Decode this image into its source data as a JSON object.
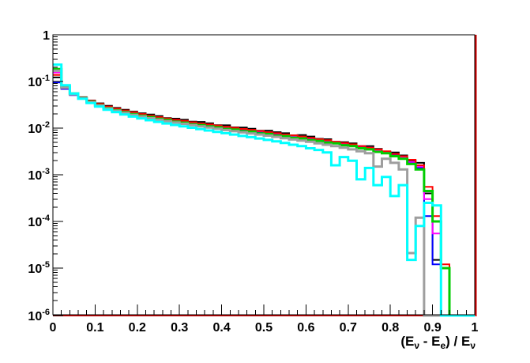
{
  "figure": {
    "background": "#ffffff",
    "axis_color": "#000000"
  },
  "chart_data": {
    "type": "histogram-steps",
    "title": "",
    "xlabel_parts": [
      {
        "text": "(E"
      },
      {
        "sub": "ν"
      },
      {
        "text": " - E"
      },
      {
        "sub": "e"
      },
      {
        "text": ") / E"
      },
      {
        "sub": "ν"
      }
    ],
    "x_min": 0,
    "x_max": 1,
    "bin_count": 50,
    "bin_width": 0.02,
    "y_scale": "log",
    "y_min": 1e-06,
    "y_max": 1,
    "grid": false,
    "legend": "none",
    "x_tick_labels": [
      "0",
      "0.1",
      "0.2",
      "0.3",
      "0.4",
      "0.5",
      "0.6",
      "0.7",
      "0.8",
      "0.9",
      "1"
    ],
    "x_major_step": 0.1,
    "x_minor_step": 0.02,
    "y_tick_exponents": [
      0,
      -1,
      -2,
      -3,
      -4,
      -5,
      -6
    ],
    "floor_line": {
      "name": "dark-red-floor-histogram",
      "color": "#cc0000",
      "width": 2
    },
    "edge_spike": {
      "name": "dark-red-edge-spike",
      "x": 1.0,
      "color": "#cc0000",
      "width": 2
    },
    "series": [
      {
        "name": "dark-red",
        "color": "#cc0000",
        "width": 2,
        "values": [
          0,
          0,
          0,
          0,
          0,
          0,
          0,
          0,
          0,
          0,
          0,
          0,
          0,
          0,
          0,
          0,
          0,
          0,
          0,
          0,
          0,
          0,
          0,
          0,
          0,
          0,
          0,
          0,
          0,
          0,
          0,
          0,
          0,
          0,
          0,
          0,
          0,
          0,
          0,
          0,
          0,
          0,
          0,
          0,
          0,
          0,
          0,
          0,
          0,
          0
        ]
      },
      {
        "name": "black",
        "color": "#000000",
        "width": 2,
        "values": [
          0.122,
          0.07,
          0.052,
          0.046,
          0.039,
          0.034,
          0.03,
          0.0272,
          0.0248,
          0.0226,
          0.0208,
          0.0196,
          0.0181,
          0.0165,
          0.016,
          0.0151,
          0.0138,
          0.0136,
          0.0127,
          0.0116,
          0.0115,
          0.0104,
          0.0103,
          0.0097,
          0.0088,
          0.0088,
          0.0082,
          0.0078,
          0.007,
          0.0071,
          0.0066,
          0.0059,
          0.0058,
          0.0051,
          0.005,
          0.0047,
          0.0041,
          0.0041,
          0.0036,
          0.0031,
          0.003,
          0.0026,
          0.002,
          0.0018,
          0.0004,
          1.5e-05,
          0,
          0,
          0,
          0
        ]
      },
      {
        "name": "blue",
        "color": "#0000ff",
        "width": 2,
        "values": [
          0.095,
          0.069,
          0.051,
          0.044,
          0.0372,
          0.032,
          0.0282,
          0.0254,
          0.0232,
          0.0212,
          0.0194,
          0.018,
          0.0167,
          0.0156,
          0.0146,
          0.0138,
          0.013,
          0.0122,
          0.0116,
          0.011,
          0.0104,
          0.0098,
          0.0093,
          0.0089,
          0.0084,
          0.008,
          0.0075,
          0.0071,
          0.0068,
          0.0064,
          0.006,
          0.0056,
          0.0053,
          0.005,
          0.0046,
          0.0043,
          0.004,
          0.0037,
          0.0034,
          0.003,
          0.0027,
          0.0023,
          0.0018,
          0.0014,
          0.00013,
          1.2e-05,
          0,
          0,
          0,
          0
        ]
      },
      {
        "name": "magenta",
        "color": "#ff00ff",
        "width": 2,
        "values": [
          0.155,
          0.072,
          0.0525,
          0.045,
          0.038,
          0.0327,
          0.0286,
          0.0258,
          0.0236,
          0.0215,
          0.0197,
          0.0183,
          0.017,
          0.0158,
          0.0149,
          0.014,
          0.0132,
          0.0124,
          0.0118,
          0.0112,
          0.0106,
          0.01,
          0.0095,
          0.009,
          0.0086,
          0.0081,
          0.0077,
          0.0072,
          0.0069,
          0.0065,
          0.0061,
          0.0057,
          0.0054,
          0.0051,
          0.0047,
          0.0044,
          0.0041,
          0.0038,
          0.0034,
          0.0031,
          0.0028,
          0.0024,
          0.0019,
          0.0015,
          0.0003,
          5.5e-05,
          0,
          0,
          0,
          0
        ]
      },
      {
        "name": "red",
        "color": "#ff0000",
        "width": 2,
        "values": [
          0.138,
          0.073,
          0.054,
          0.0455,
          0.0385,
          0.0332,
          0.0291,
          0.0263,
          0.024,
          0.0219,
          0.0201,
          0.0186,
          0.0173,
          0.0161,
          0.0151,
          0.0143,
          0.0134,
          0.0126,
          0.012,
          0.0114,
          0.0107,
          0.0102,
          0.0096,
          0.0092,
          0.0087,
          0.0082,
          0.0078,
          0.0073,
          0.007,
          0.0066,
          0.0062,
          0.0058,
          0.0055,
          0.0051,
          0.0048,
          0.0045,
          0.0041,
          0.0038,
          0.0035,
          0.0032,
          0.0028,
          0.0025,
          0.0021,
          0.0016,
          0.00055,
          0.00013,
          1.2e-05,
          0,
          0,
          0
        ]
      },
      {
        "name": "green",
        "color": "#00cc00",
        "width": 3,
        "values": [
          0.185,
          0.076,
          0.055,
          0.044,
          0.0365,
          0.031,
          0.027,
          0.0242,
          0.022,
          0.02,
          0.0184,
          0.0172,
          0.0158,
          0.0149,
          0.0137,
          0.0131,
          0.0121,
          0.0116,
          0.0109,
          0.0104,
          0.0096,
          0.0093,
          0.0086,
          0.0084,
          0.0077,
          0.0075,
          0.0069,
          0.0067,
          0.0062,
          0.006,
          0.0055,
          0.0053,
          0.0049,
          0.0047,
          0.0043,
          0.0041,
          0.0037,
          0.0035,
          0.0031,
          0.0029,
          0.0025,
          0.0022,
          0.0017,
          0.0013,
          0.00045,
          0.0001,
          1e-05,
          0,
          0,
          0
        ]
      },
      {
        "name": "gray",
        "color": "#9e9e9e",
        "width": 3,
        "values": [
          0.17,
          0.074,
          0.053,
          0.0435,
          0.036,
          0.0305,
          0.0264,
          0.0236,
          0.0213,
          0.0193,
          0.0177,
          0.0163,
          0.0151,
          0.0141,
          0.0132,
          0.0124,
          0.0116,
          0.0109,
          0.0103,
          0.0097,
          0.0091,
          0.0086,
          0.0081,
          0.0077,
          0.0073,
          0.0069,
          0.0065,
          0.0061,
          0.0057,
          0.0054,
          0.0051,
          0.0047,
          0.0044,
          0.0041,
          0.0038,
          0.0035,
          0.0032,
          0.0029,
          0.0015,
          0.0022,
          0.0018,
          0.0013,
          2.1e-05,
          0.00012,
          0,
          0,
          0,
          0,
          0,
          0
        ]
      },
      {
        "name": "cyan",
        "color": "#00ffff",
        "width": 3,
        "values": [
          0.23,
          0.083,
          0.055,
          0.0425,
          0.0345,
          0.029,
          0.0248,
          0.022,
          0.0196,
          0.0177,
          0.0161,
          0.0148,
          0.0136,
          0.0126,
          0.0117,
          0.0109,
          0.0102,
          0.0095,
          0.0089,
          0.0083,
          0.0078,
          0.0073,
          0.0068,
          0.0064,
          0.006,
          0.0056,
          0.0052,
          0.0048,
          0.0044,
          0.0041,
          0.0037,
          0.0034,
          0.003,
          0.0016,
          0.0024,
          0.002,
          0.0008,
          0.0014,
          0.0006,
          0.0009,
          0.00035,
          0.0006,
          1.5e-05,
          8e-05,
          0.00025,
          0.00022,
          0,
          0,
          0,
          0
        ]
      }
    ]
  }
}
